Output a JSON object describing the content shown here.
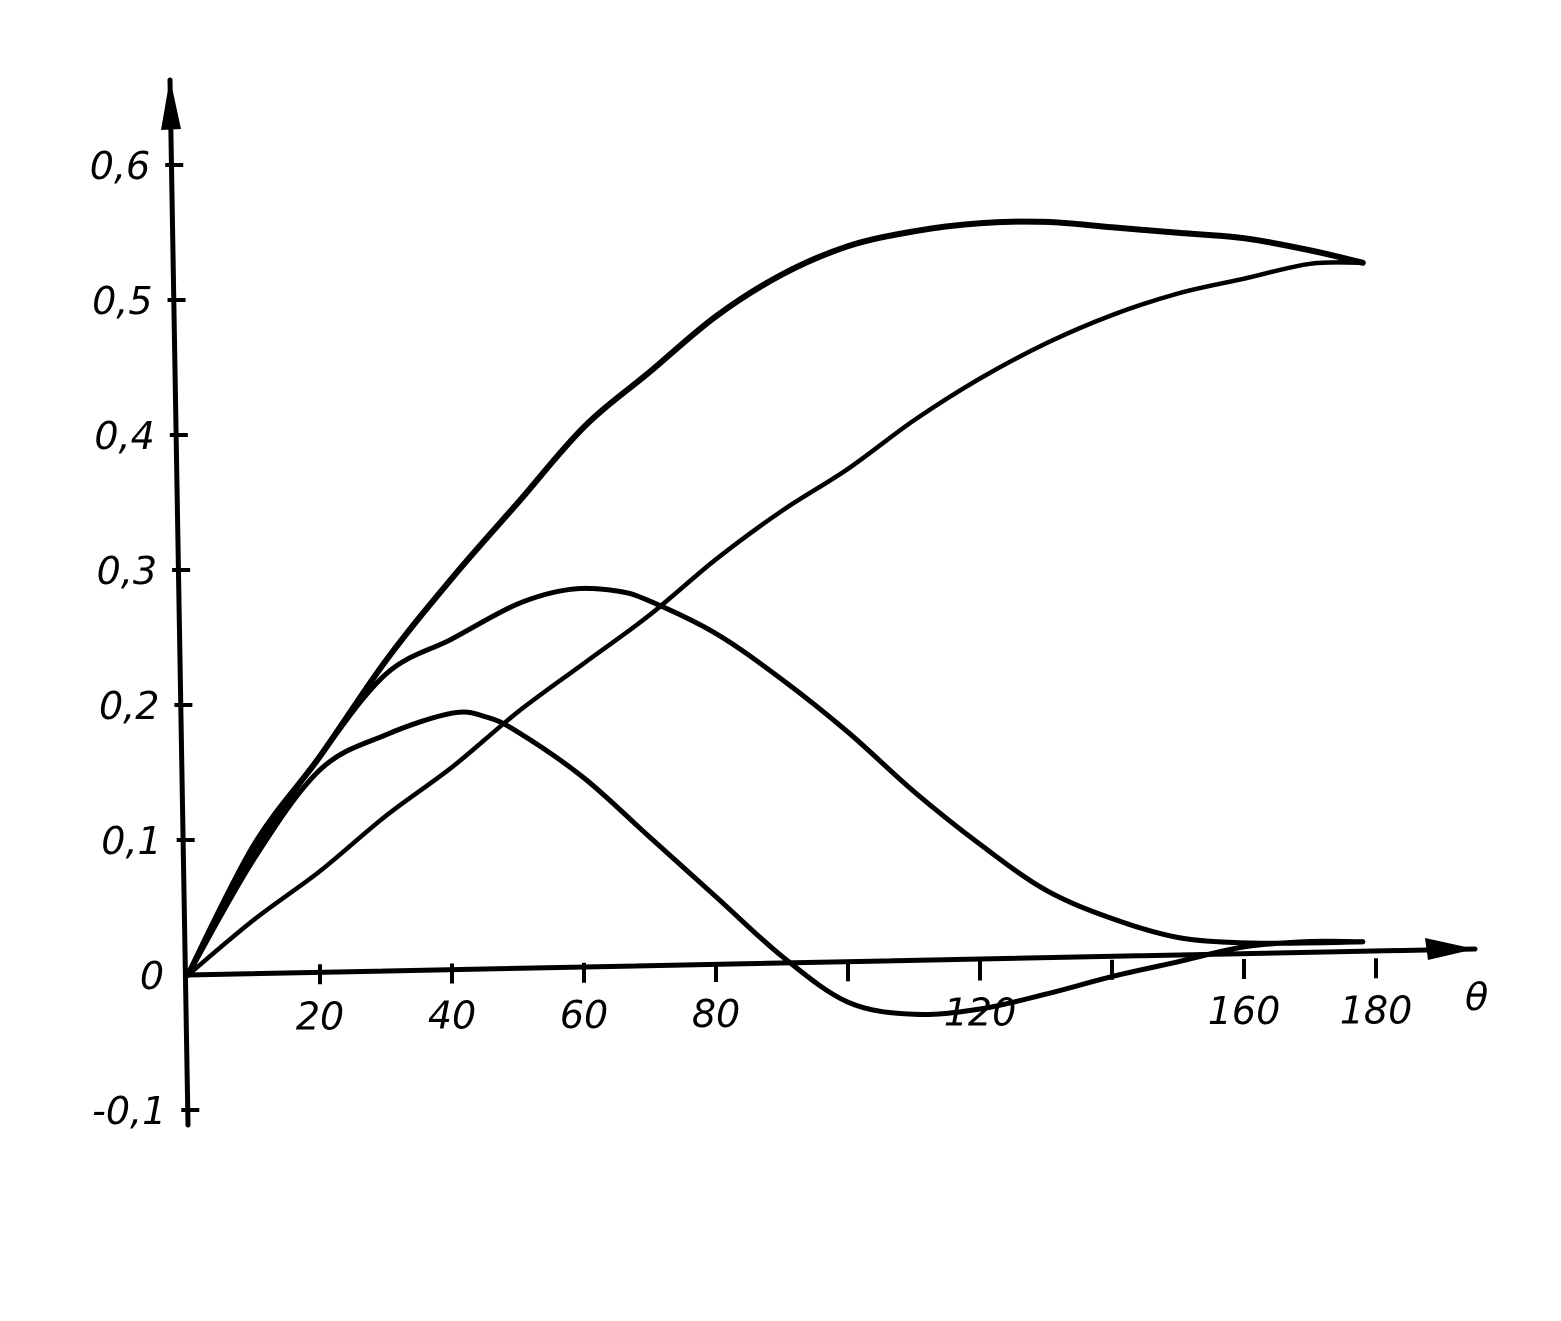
{
  "chart_data": {
    "type": "line",
    "title": "",
    "xlabel": "θ",
    "ylabel": "",
    "xlim": [
      0,
      180
    ],
    "ylim": [
      -0.1,
      0.6
    ],
    "x_ticks": [
      0,
      20,
      40,
      60,
      80,
      100,
      120,
      140,
      160,
      180
    ],
    "x_tick_labels": [
      "",
      "20",
      "40",
      "60",
      "80",
      "",
      "120",
      "",
      "160",
      "180"
    ],
    "y_ticks": [
      -0.1,
      0,
      0.1,
      0.2,
      0.3,
      0.4,
      0.5,
      0.6
    ],
    "y_tick_labels": [
      "-0,1",
      "0",
      "0,1",
      "0,2",
      "0,3",
      "0,4",
      "0,5",
      "0,6"
    ],
    "grid": false,
    "legend": "none",
    "series": [
      {
        "x": [
          0,
          10,
          20,
          30,
          40,
          50,
          60,
          70,
          80,
          90,
          100,
          110,
          120,
          130,
          140,
          150,
          160,
          170,
          178
        ],
        "y": [
          0,
          0.095,
          0.16,
          0.23,
          0.29,
          0.345,
          0.4,
          0.44,
          0.48,
          0.51,
          0.53,
          0.54,
          0.545,
          0.545,
          0.54,
          0.535,
          0.53,
          0.52,
          0.51
        ]
      },
      {
        "x": [
          0,
          10,
          20,
          30,
          40,
          50,
          60,
          70,
          80,
          90,
          100,
          110,
          120,
          130,
          140,
          150,
          160,
          170,
          178
        ],
        "y": [
          0,
          0.04,
          0.075,
          0.115,
          0.15,
          0.19,
          0.225,
          0.26,
          0.3,
          0.335,
          0.365,
          0.4,
          0.43,
          0.455,
          0.475,
          0.49,
          0.5,
          0.51,
          0.51
        ]
      },
      {
        "x": [
          0,
          10,
          20,
          30,
          40,
          50,
          58,
          65,
          70,
          80,
          90,
          100,
          110,
          120,
          130,
          140,
          150,
          160,
          170,
          178
        ],
        "y": [
          0,
          0.09,
          0.16,
          0.22,
          0.245,
          0.27,
          0.28,
          0.278,
          0.27,
          0.245,
          0.21,
          0.17,
          0.125,
          0.085,
          0.05,
          0.028,
          0.013,
          0.008,
          0.007,
          0.007
        ]
      },
      {
        "x": [
          0,
          10,
          20,
          30,
          40,
          45,
          50,
          60,
          70,
          80,
          90,
          100,
          110,
          120,
          130,
          140,
          150,
          160,
          170,
          178
        ],
        "y": [
          0,
          0.085,
          0.15,
          0.175,
          0.19,
          0.187,
          0.175,
          0.14,
          0.095,
          0.05,
          0.005,
          -0.03,
          -0.04,
          -0.037,
          -0.027,
          -0.015,
          -0.005,
          0.005,
          0.008,
          0.007
        ]
      }
    ]
  }
}
